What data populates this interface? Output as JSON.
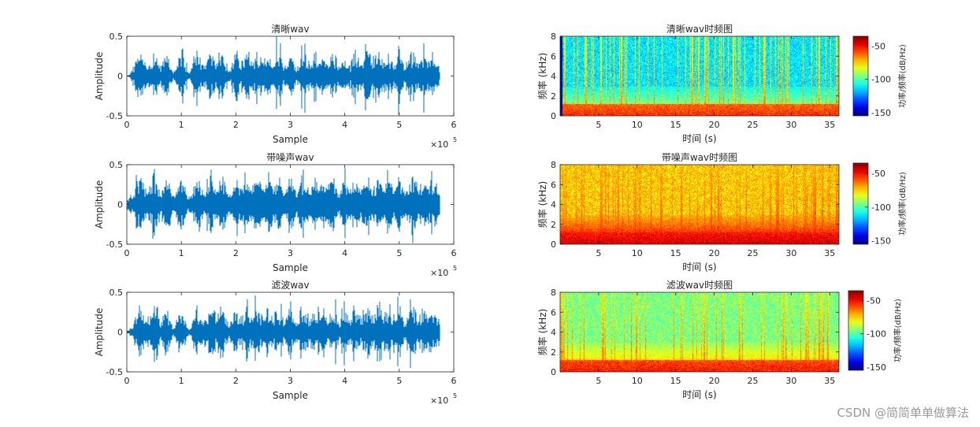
{
  "chart_data": [
    {
      "type": "line",
      "title": "清晰wav",
      "xlabel": "Sample",
      "ylabel": "Amplitude",
      "x_exponent": "×10^5",
      "x_exp_base": "×10",
      "x_exp_power": "5",
      "xlim": [
        0,
        600000
      ],
      "ylim": [
        -0.5,
        0.5
      ],
      "xticks": [
        0,
        1,
        2,
        3,
        4,
        5,
        6
      ],
      "yticks": [
        -0.5,
        0,
        0.5
      ],
      "signal_end_sample": 575000,
      "bursts_x1e5": [
        0.25,
        0.5,
        0.72,
        1.0,
        1.3,
        1.55,
        1.75,
        2.0,
        2.2,
        2.4,
        2.6,
        2.78,
        3.0,
        3.25,
        3.45,
        3.62,
        3.78,
        4.0,
        4.2,
        4.42,
        4.62,
        4.8,
        5.0,
        5.25,
        5.45,
        5.62
      ],
      "noise_floor": 0.012,
      "peak_amplitude": 0.5
    },
    {
      "type": "line",
      "title": "带噪声wav",
      "xlabel": "Sample",
      "ylabel": "Amplitude",
      "x_exponent": "×10^5",
      "x_exp_base": "×10",
      "x_exp_power": "5",
      "xlim": [
        0,
        600000
      ],
      "ylim": [
        -0.5,
        0.5
      ],
      "xticks": [
        0,
        1,
        2,
        3,
        4,
        5,
        6
      ],
      "yticks": [
        -0.5,
        0,
        0.5
      ],
      "signal_end_sample": 575000,
      "bursts_x1e5": [
        0.25,
        0.5,
        0.72,
        1.0,
        1.3,
        1.55,
        1.75,
        2.0,
        2.2,
        2.4,
        2.6,
        2.78,
        3.0,
        3.25,
        3.45,
        3.62,
        3.78,
        4.0,
        4.2,
        4.42,
        4.62,
        4.8,
        5.0,
        5.25,
        5.45,
        5.62
      ],
      "noise_floor": 0.09,
      "peak_amplitude": 0.5
    },
    {
      "type": "line",
      "title": "滤波wav",
      "xlabel": "Sample",
      "ylabel": "Amplitude",
      "x_exponent": "×10^5",
      "x_exp_base": "×10",
      "x_exp_power": "5",
      "xlim": [
        0,
        600000
      ],
      "ylim": [
        -0.5,
        0.5
      ],
      "xticks": [
        0,
        1,
        2,
        3,
        4,
        5,
        6
      ],
      "yticks": [
        -0.5,
        0,
        0.5
      ],
      "signal_end_sample": 575000,
      "bursts_x1e5": [
        0.25,
        0.5,
        0.72,
        1.0,
        1.3,
        1.55,
        1.75,
        2.0,
        2.2,
        2.4,
        2.6,
        2.78,
        3.0,
        3.25,
        3.45,
        3.62,
        3.78,
        4.0,
        4.2,
        4.42,
        4.62,
        4.8,
        5.0,
        5.25,
        5.45,
        5.62
      ],
      "noise_floor": 0.02,
      "peak_amplitude": 0.5
    },
    {
      "type": "heatmap",
      "title": "清晰wav时频图",
      "xlabel": "时间 (s)",
      "ylabel": "频率 (kHz)",
      "colorbar_label": "功率/频率(dB/Hz)",
      "xlim": [
        0,
        36.2
      ],
      "ylim": [
        0,
        8
      ],
      "xticks": [
        5,
        10,
        15,
        20,
        25,
        30,
        35
      ],
      "yticks": [
        0,
        2,
        4,
        6,
        8
      ],
      "clim": [
        -155,
        -35
      ],
      "cticks": [
        -50,
        -100,
        -150
      ],
      "colormap": "jet",
      "background_db": -112,
      "low_band_db": -55,
      "vertical_stripe_db": -70,
      "leading_silence_s": 0.35
    },
    {
      "type": "heatmap",
      "title": "带噪声wav时频图",
      "xlabel": "时间 (s)",
      "ylabel": "频率 (kHz)",
      "colorbar_label": "功率/频率(dB/Hz)",
      "xlim": [
        0,
        36.2
      ],
      "ylim": [
        0,
        8
      ],
      "xticks": [
        5,
        10,
        15,
        20,
        25,
        30,
        35
      ],
      "yticks": [
        0,
        2,
        4,
        6,
        8
      ],
      "clim": [
        -155,
        -35
      ],
      "cticks": [
        -50,
        -100,
        -150
      ],
      "colormap": "jet",
      "background_db": -74,
      "low_band_db": -45,
      "vertical_stripe_db": -60,
      "leading_silence_s": 0
    },
    {
      "type": "heatmap",
      "title": "滤波wav时频图",
      "xlabel": "时间 (s)",
      "ylabel": "频率 (kHz)",
      "colorbar_label": "功率/频率(dB/Hz)",
      "xlim": [
        0,
        36.2
      ],
      "ylim": [
        0,
        8
      ],
      "xticks": [
        5,
        10,
        15,
        20,
        25,
        30,
        35
      ],
      "yticks": [
        0,
        2,
        4,
        6,
        8
      ],
      "clim": [
        -155,
        -35
      ],
      "cticks": [
        -50,
        -100,
        -150
      ],
      "colormap": "jet",
      "background_db": -95,
      "low_band_db": -52,
      "vertical_stripe_db": -66,
      "leading_silence_s": 0
    }
  ],
  "watermark": "CSDN @简简单单做算法"
}
